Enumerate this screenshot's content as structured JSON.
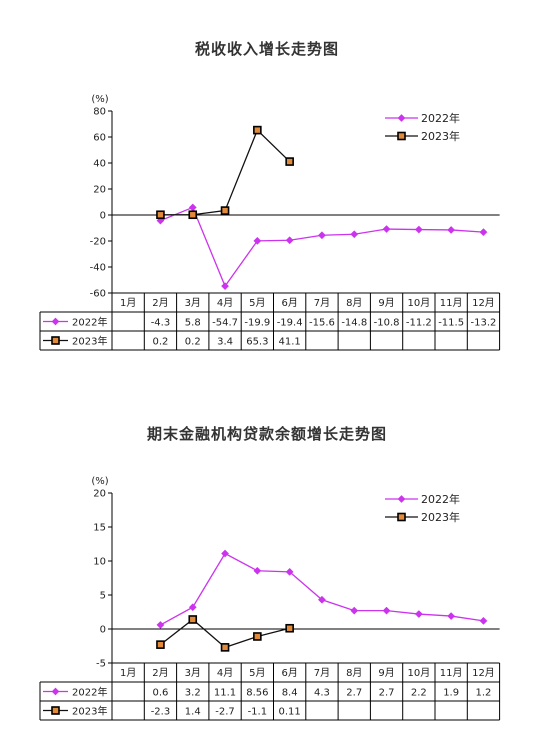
{
  "months": [
    "1月",
    "2月",
    "3月",
    "4月",
    "5月",
    "6月",
    "7月",
    "8月",
    "9月",
    "10月",
    "11月",
    "12月"
  ],
  "colors": {
    "s2022": "#cc33ee",
    "s2023": "#111111",
    "marker2023": "#e08a3a"
  },
  "chart_data": [
    {
      "type": "line",
      "title": "税收收入增长走势图",
      "ylabel": "(%)",
      "yticks": [
        80,
        60,
        40,
        20,
        0,
        -20,
        -40,
        -60
      ],
      "ylim": [
        -60,
        80
      ],
      "legend_position": "top-right",
      "categories": [
        "1月",
        "2月",
        "3月",
        "4月",
        "5月",
        "6月",
        "7月",
        "8月",
        "9月",
        "10月",
        "11月",
        "12月"
      ],
      "series": [
        {
          "name": "2022年",
          "values": [
            null,
            -4.3,
            5.8,
            -54.7,
            -19.9,
            -19.4,
            -15.6,
            -14.8,
            -10.8,
            -11.2,
            -11.5,
            -13.2
          ],
          "labels": [
            "",
            "-4.3",
            "5.8",
            "-54.7",
            "-19.9",
            "-19.4",
            "-15.6",
            "-14.8",
            "-10.8",
            "-11.2",
            "-11.5",
            "-13.2"
          ]
        },
        {
          "name": "2023年",
          "values": [
            null,
            0.2,
            0.2,
            3.4,
            65.3,
            41.1,
            null,
            null,
            null,
            null,
            null,
            null
          ],
          "labels": [
            "",
            "0.2",
            "0.2",
            "3.4",
            "65.3",
            "41.1",
            "",
            "",
            "",
            "",
            "",
            ""
          ]
        }
      ]
    },
    {
      "type": "line",
      "title": "期末金融机构贷款余额增长走势图",
      "ylabel": "(%)",
      "yticks": [
        20,
        15,
        10,
        5,
        0,
        -5
      ],
      "ylim": [
        -5,
        20
      ],
      "legend_position": "top-right",
      "categories": [
        "1月",
        "2月",
        "3月",
        "4月",
        "5月",
        "6月",
        "7月",
        "8月",
        "9月",
        "10月",
        "11月",
        "12月"
      ],
      "series": [
        {
          "name": "2022年",
          "values": [
            null,
            0.6,
            3.2,
            11.1,
            8.56,
            8.4,
            4.3,
            2.7,
            2.7,
            2.2,
            1.9,
            1.2
          ],
          "labels": [
            "",
            "0.6",
            "3.2",
            "11.1",
            "8.56",
            "8.4",
            "4.3",
            "2.7",
            "2.7",
            "2.2",
            "1.9",
            "1.2"
          ]
        },
        {
          "name": "2023年",
          "values": [
            null,
            -2.3,
            1.4,
            -2.7,
            -1.1,
            0.11,
            null,
            null,
            null,
            null,
            null,
            null
          ],
          "labels": [
            "",
            "-2.3",
            "1.4",
            "-2.7",
            "-1.1",
            "0.11",
            "",
            "",
            "",
            "",
            "",
            ""
          ]
        }
      ]
    }
  ]
}
